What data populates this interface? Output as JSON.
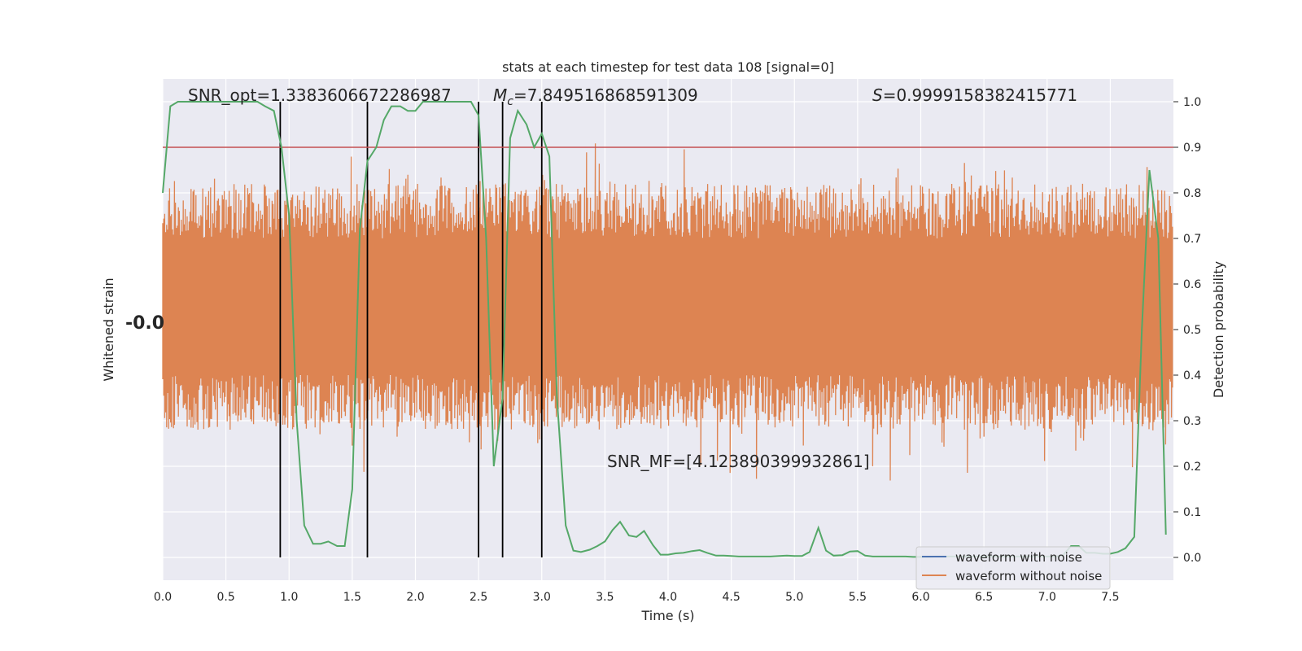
{
  "chart_data": {
    "type": "line",
    "title": "stats at each timestep for test data 108 [signal=0]",
    "xlabel": "Time (s)",
    "ylabel_left": "Whitened strain",
    "ylabel_right": "Detection probability",
    "xlim": [
      0.0,
      8.0
    ],
    "ylim_right": [
      -0.05,
      1.05
    ],
    "x_ticks": [
      "0.0",
      "0.5",
      "1.0",
      "1.5",
      "2.0",
      "2.5",
      "3.0",
      "3.5",
      "4.0",
      "4.5",
      "5.0",
      "5.5",
      "6.0",
      "6.5",
      "7.0",
      "7.5"
    ],
    "y_ticks_right": [
      "0.0",
      "0.1",
      "0.2",
      "0.3",
      "0.4",
      "0.5",
      "0.6",
      "0.7",
      "0.8",
      "0.9",
      "1.0"
    ],
    "left_tick_labels": "-0.0",
    "grid": true,
    "legend_position": "bottom-right",
    "annotations": {
      "snr_opt": "SNR_opt=1.3383606672286987",
      "mc_symbol": "M",
      "mc_subscript": "c",
      "mc_value": "=7.849516868591309",
      "s_symbol": "S",
      "s_value": "=0.9999158382415771",
      "snr_mf": "SNR_MF=[4.123890399932861]"
    },
    "threshold": 0.9,
    "vertical_lines": [
      0.93,
      1.62,
      2.5,
      2.69,
      3.0
    ],
    "series": [
      {
        "name": "waveform with noise",
        "color": "#4c72b0",
        "values": []
      },
      {
        "name": "waveform without noise",
        "color": "#dd8452",
        "note_values": "random noise envelope approx 0.25 to 0.85 on probability axis"
      },
      {
        "name": "",
        "color": "#55a868",
        "x": [
          0.0,
          0.06,
          0.12,
          0.19,
          0.25,
          0.31,
          0.38,
          0.44,
          0.5,
          0.56,
          0.62,
          0.69,
          0.75,
          0.81,
          0.88,
          0.94,
          1.0,
          1.06,
          1.12,
          1.19,
          1.25,
          1.31,
          1.38,
          1.44,
          1.5,
          1.56,
          1.62,
          1.69,
          1.75,
          1.81,
          1.88,
          1.94,
          2.0,
          2.06,
          2.12,
          2.19,
          2.25,
          2.31,
          2.38,
          2.44,
          2.5,
          2.56,
          2.62,
          2.69,
          2.75,
          2.81,
          2.88,
          2.94,
          3.0,
          3.06,
          3.12,
          3.19,
          3.25,
          3.31,
          3.38,
          3.44,
          3.5,
          3.56,
          3.62,
          3.69,
          3.75,
          3.81,
          3.88,
          3.94,
          4.0,
          4.06,
          4.12,
          4.19,
          4.25,
          4.31,
          4.38,
          4.44,
          4.5,
          4.56,
          4.62,
          4.69,
          4.75,
          4.81,
          4.88,
          4.94,
          5.0,
          5.06,
          5.12,
          5.19,
          5.25,
          5.31,
          5.38,
          5.44,
          5.5,
          5.56,
          5.62,
          5.69,
          5.75,
          5.81,
          5.88,
          5.94,
          6.0,
          6.06,
          6.12,
          6.19,
          6.25,
          6.31,
          6.38,
          6.44,
          6.5,
          6.56,
          6.62,
          6.69,
          6.75,
          6.81,
          6.88,
          6.94,
          7.0,
          7.06,
          7.12,
          7.19,
          7.25,
          7.31,
          7.38,
          7.44,
          7.5,
          7.56,
          7.62,
          7.69,
          7.75,
          7.81,
          7.88,
          7.94
        ],
        "values": [
          0.8,
          0.99,
          1.0,
          1.0,
          1.0,
          1.0,
          1.0,
          1.0,
          1.0,
          1.0,
          1.0,
          1.0,
          1.0,
          0.99,
          0.98,
          0.9,
          0.75,
          0.3,
          0.07,
          0.03,
          0.03,
          0.035,
          0.025,
          0.025,
          0.15,
          0.72,
          0.87,
          0.9,
          0.96,
          0.99,
          0.99,
          0.98,
          0.98,
          1.0,
          1.0,
          1.0,
          1.0,
          1.0,
          1.0,
          1.0,
          0.97,
          0.7,
          0.2,
          0.35,
          0.92,
          0.98,
          0.95,
          0.9,
          0.93,
          0.88,
          0.35,
          0.07,
          0.015,
          0.012,
          0.017,
          0.025,
          0.035,
          0.06,
          0.078,
          0.048,
          0.045,
          0.058,
          0.027,
          0.006,
          0.006,
          0.009,
          0.01,
          0.014,
          0.016,
          0.01,
          0.004,
          0.004,
          0.003,
          0.002,
          0.002,
          0.002,
          0.002,
          0.002,
          0.003,
          0.004,
          0.003,
          0.003,
          0.012,
          0.065,
          0.015,
          0.004,
          0.005,
          0.013,
          0.014,
          0.004,
          0.002,
          0.002,
          0.002,
          0.002,
          0.002,
          0.001,
          0.001,
          0.001,
          0.002,
          0.002,
          0.002,
          0.002,
          0.002,
          0.002,
          0.002,
          0.002,
          0.002,
          0.002,
          0.002,
          0.002,
          0.002,
          0.002,
          0.002,
          0.002,
          0.003,
          0.025,
          0.025,
          0.01,
          0.01,
          0.008,
          0.008,
          0.012,
          0.02,
          0.045,
          0.5,
          0.85,
          0.7,
          0.05
        ]
      }
    ]
  }
}
